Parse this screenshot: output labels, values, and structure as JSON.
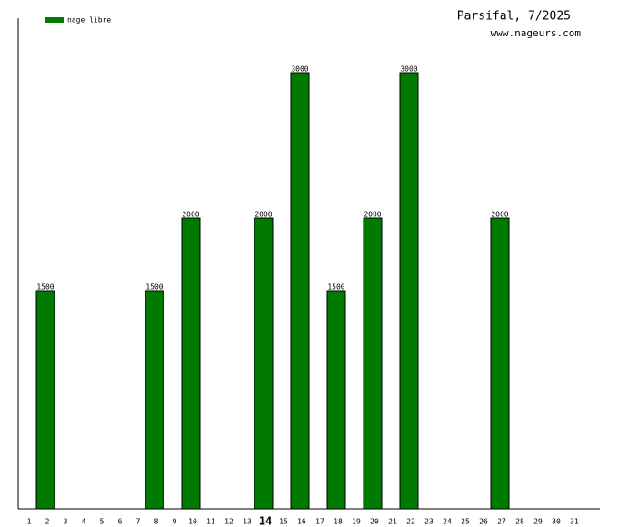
{
  "chart_data": {
    "type": "bar",
    "title": "Parsifal, 7/2025",
    "subtitle": "www.nageurs.com",
    "categories": [
      "1",
      "2",
      "3",
      "4",
      "5",
      "6",
      "7",
      "8",
      "9",
      "10",
      "11",
      "12",
      "13",
      "14",
      "15",
      "16",
      "17",
      "18",
      "19",
      "20",
      "21",
      "22",
      "23",
      "24",
      "25",
      "26",
      "27",
      "28",
      "29",
      "30",
      "31"
    ],
    "highlight_category": "14",
    "series": [
      {
        "name": "nage libre",
        "color": "#007a00",
        "values": [
          null,
          1500,
          null,
          null,
          null,
          null,
          null,
          1500,
          null,
          2000,
          null,
          null,
          null,
          2000,
          null,
          3000,
          null,
          1500,
          null,
          2000,
          null,
          3000,
          null,
          null,
          null,
          null,
          2000,
          null,
          null,
          null,
          null
        ]
      }
    ],
    "ylim": [
      0,
      3375
    ],
    "legend": "top-left"
  }
}
